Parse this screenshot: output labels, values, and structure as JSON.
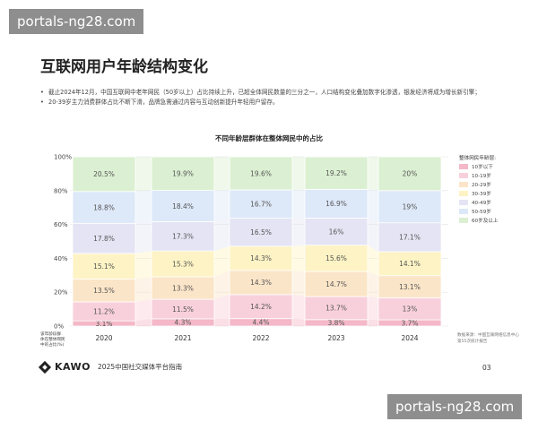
{
  "watermark": {
    "top": "portals-ng28.com",
    "bottom": "portals-ng28.com"
  },
  "page": {
    "title": "互联网用户年龄结构变化",
    "bullets": [
      "截止2024年12月，中国互联网中老年网民（50岁以上）占比持续上升，已超全体网民数量的三分之一，人口结构变化叠加数字化渗透，银发经济将成为增长新引擎；",
      "20-39岁主力消费群体占比不断下滑，品牌急需通过内容与互动创新提升年轻用户留存。"
    ],
    "bullet_symbol": "•",
    "footer": {
      "brand": "KAWO",
      "subtitle": "2025中国社交媒体平台指南",
      "page_number": "03"
    },
    "source_note": "数据来源：中国互联网络信息中心第55次统计报告"
  },
  "chart_data": {
    "type": "bar",
    "title": "不同年龄层群体在整体网民中的占比",
    "categories": [
      "2020",
      "2021",
      "2022",
      "2023",
      "2024"
    ],
    "y_ticks": [
      "0%",
      "20%",
      "40%",
      "60%",
      "80%",
      "100%"
    ],
    "ylim": [
      0,
      100
    ],
    "stacked": true,
    "xlabel_note": "该年龄段群体在整体网民中的占比(%)",
    "legend": {
      "title": "整体网民年龄层:",
      "position": "right"
    },
    "series": [
      {
        "name": "10岁以下",
        "color": "#f4b8c8",
        "values": [
          3.1,
          4.3,
          4.4,
          3.8,
          3.7
        ],
        "labels": [
          "3.1%",
          "4.3%",
          "4.4%",
          "3.8%",
          "3.7%"
        ]
      },
      {
        "name": "10-19岁",
        "color": "#f8d0dc",
        "values": [
          11.2,
          11.5,
          14.2,
          13.7,
          13.0
        ],
        "labels": [
          "11.2%",
          "11.5%",
          "14.2%",
          "13.7%",
          "13%"
        ]
      },
      {
        "name": "20-29岁",
        "color": "#fbe5c8",
        "values": [
          13.5,
          13.3,
          14.3,
          14.7,
          13.1
        ],
        "labels": [
          "13.5%",
          "13.3%",
          "14.3%",
          "14.7%",
          "13.1%"
        ]
      },
      {
        "name": "30-39岁",
        "color": "#fdf3c4",
        "values": [
          15.1,
          15.3,
          14.3,
          15.6,
          14.1
        ],
        "labels": [
          "15.1%",
          "15.3%",
          "14.3%",
          "15.6%",
          "14.1%"
        ]
      },
      {
        "name": "40-49岁",
        "color": "#e4e4f4",
        "values": [
          17.8,
          17.3,
          16.5,
          16.0,
          17.1
        ],
        "labels": [
          "17.8%",
          "17.3%",
          "16.5%",
          "16%",
          "17.1%"
        ]
      },
      {
        "name": "50-59岁",
        "color": "#dde8f8",
        "values": [
          18.8,
          18.4,
          16.7,
          16.9,
          19.0
        ],
        "labels": [
          "18.8%",
          "18.4%",
          "16.7%",
          "16.9%",
          "19%"
        ]
      },
      {
        "name": "60岁及以上",
        "color": "#dbf0d2",
        "values": [
          20.5,
          19.9,
          19.6,
          19.2,
          20.0
        ],
        "labels": [
          "20.5%",
          "19.9%",
          "19.6%",
          "19.2%",
          "20%"
        ]
      }
    ]
  }
}
